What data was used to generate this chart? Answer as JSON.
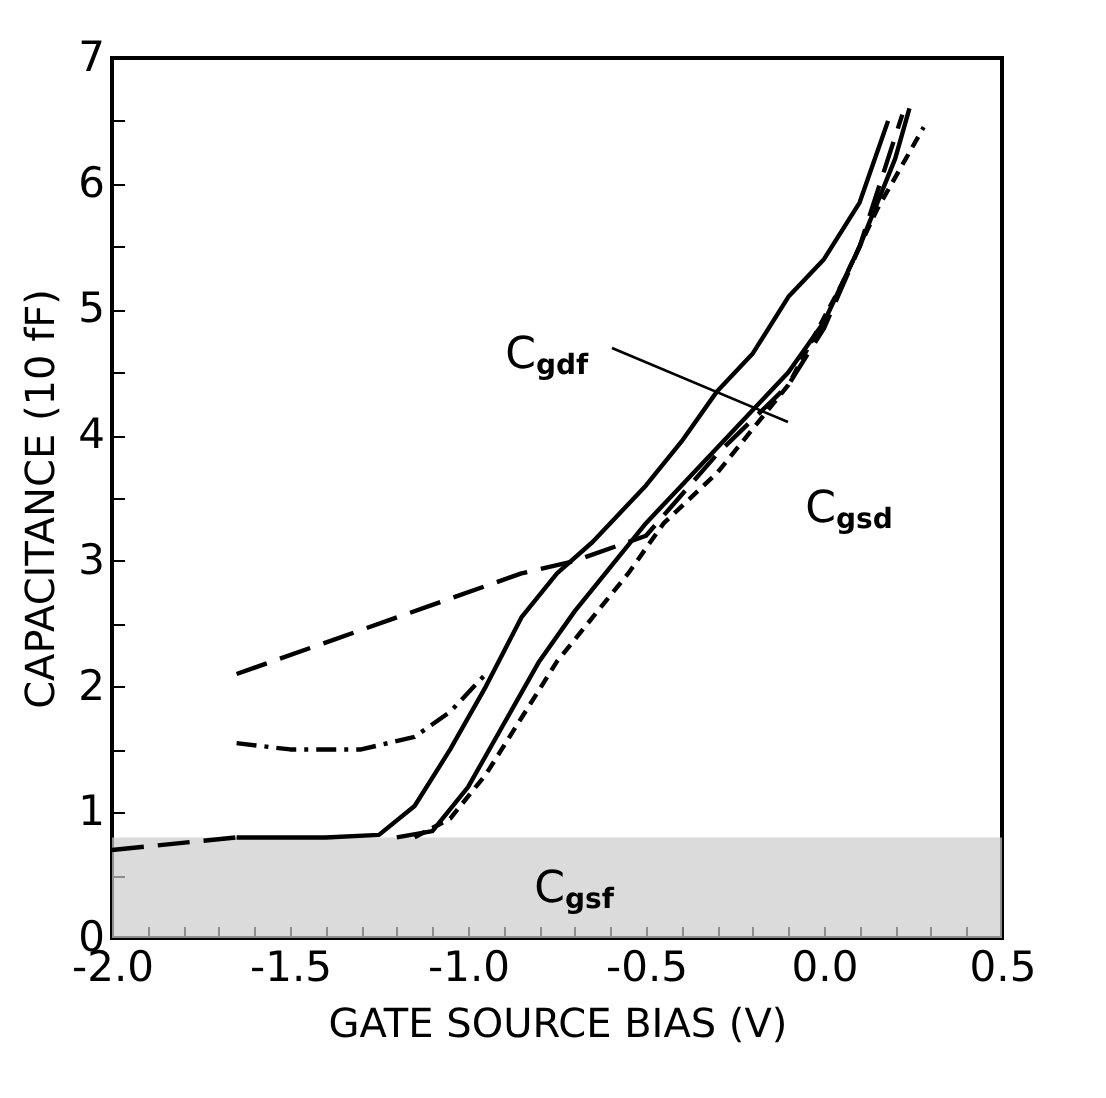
{
  "chart_data": {
    "type": "line",
    "xlabel": "GATE SOURCE BIAS (V)",
    "ylabel": "CAPACITANCE (10 fF)",
    "xlim": [
      -2.0,
      0.5
    ],
    "ylim": [
      0,
      7
    ],
    "xticks": [
      {
        "value": -2.0,
        "label": "-2.0"
      },
      {
        "value": -1.9,
        "label": null
      },
      {
        "value": -1.8,
        "label": null
      },
      {
        "value": -1.7,
        "label": null
      },
      {
        "value": -1.6,
        "label": null
      },
      {
        "value": -1.5,
        "label": "-1.5"
      },
      {
        "value": -1.4,
        "label": null
      },
      {
        "value": -1.3,
        "label": null
      },
      {
        "value": -1.2,
        "label": null
      },
      {
        "value": -1.1,
        "label": null
      },
      {
        "value": -1.0,
        "label": "-1.0"
      },
      {
        "value": -0.9,
        "label": null
      },
      {
        "value": -0.8,
        "label": null
      },
      {
        "value": -0.7,
        "label": null
      },
      {
        "value": -0.6,
        "label": null
      },
      {
        "value": -0.5,
        "label": "-0.5"
      },
      {
        "value": -0.4,
        "label": null
      },
      {
        "value": -0.3,
        "label": null
      },
      {
        "value": -0.2,
        "label": null
      },
      {
        "value": -0.1,
        "label": null
      },
      {
        "value": 0.0,
        "label": "0.0"
      },
      {
        "value": 0.1,
        "label": null
      },
      {
        "value": 0.2,
        "label": null
      },
      {
        "value": 0.3,
        "label": null
      },
      {
        "value": 0.4,
        "label": null
      },
      {
        "value": 0.5,
        "label": "0.5"
      }
    ],
    "yticks": [
      0,
      {
        "value": 0.5,
        "label": null
      },
      1,
      {
        "value": 1.5,
        "label": null
      },
      2,
      {
        "value": 2.5,
        "label": null
      },
      3,
      {
        "value": 3.5,
        "label": null
      },
      4,
      {
        "value": 4.5,
        "label": null
      },
      5,
      {
        "value": 5.5,
        "label": null
      },
      6,
      {
        "value": 6.5,
        "label": null
      },
      7
    ],
    "grid": false,
    "marker": "none",
    "series": [
      {
        "color": "#000000",
        "line_style": "solid",
        "x": [
          -1.65,
          -1.4,
          -1.25,
          -1.15,
          -1.05,
          -0.95,
          -0.85,
          -0.75,
          -0.65,
          -0.5,
          -0.4,
          -0.3,
          -0.2,
          -0.1,
          0.0,
          0.1,
          0.18
        ],
        "values": [
          0.8,
          0.8,
          0.82,
          1.05,
          1.5,
          2.0,
          2.55,
          2.9,
          3.15,
          3.6,
          3.95,
          4.35,
          4.65,
          5.1,
          5.4,
          5.85,
          6.5
        ]
      },
      {
        "color": "#000000",
        "line_style": "solid",
        "x": [
          -1.2,
          -1.1,
          -1.0,
          -0.9,
          -0.8,
          -0.7,
          -0.6,
          -0.5,
          -0.4,
          -0.3,
          -0.2,
          -0.1,
          0.0,
          0.1,
          0.2,
          0.24
        ],
        "values": [
          0.8,
          0.85,
          1.2,
          1.7,
          2.2,
          2.6,
          2.95,
          3.3,
          3.6,
          3.9,
          4.2,
          4.5,
          4.9,
          5.5,
          6.2,
          6.6
        ]
      },
      {
        "color": "#000000",
        "line_style": "dashdot",
        "x": [
          -1.65,
          -1.5,
          -1.3,
          -1.15,
          -1.05,
          -0.95
        ],
        "values": [
          1.55,
          1.5,
          1.5,
          1.6,
          1.8,
          2.1
        ]
      },
      {
        "color": "#000000",
        "line_style": "longdash",
        "x": [
          -1.65,
          -1.4,
          -1.1,
          -0.85,
          -0.7,
          -0.5,
          -0.3,
          -0.1,
          0.0,
          0.1,
          0.22
        ],
        "values": [
          2.1,
          2.35,
          2.65,
          2.9,
          3.0,
          3.2,
          3.85,
          4.4,
          4.85,
          5.5,
          6.55
        ]
      },
      {
        "color": "#000000",
        "line_style": "dashed",
        "x": [
          -1.15,
          -1.05,
          -0.95,
          -0.85,
          -0.75,
          -0.65,
          -0.55,
          -0.45,
          -0.3,
          -0.1,
          0.05,
          0.15,
          0.28
        ],
        "values": [
          0.8,
          0.95,
          1.3,
          1.75,
          2.2,
          2.55,
          2.9,
          3.3,
          3.7,
          4.4,
          5.2,
          5.8,
          6.45
        ]
      },
      {
        "color": "#000000",
        "line_style": "longdash",
        "x": [
          -2.0,
          -1.65
        ],
        "values": [
          0.7,
          0.8
        ]
      }
    ],
    "bands": [
      {
        "axis": "y",
        "from": 0,
        "to": 0.8,
        "label": "C$_{gsf}$",
        "color": "#cccccc"
      }
    ],
    "annotations": [
      "C$_{gdf}$",
      "C$_{gsd}$"
    ]
  }
}
